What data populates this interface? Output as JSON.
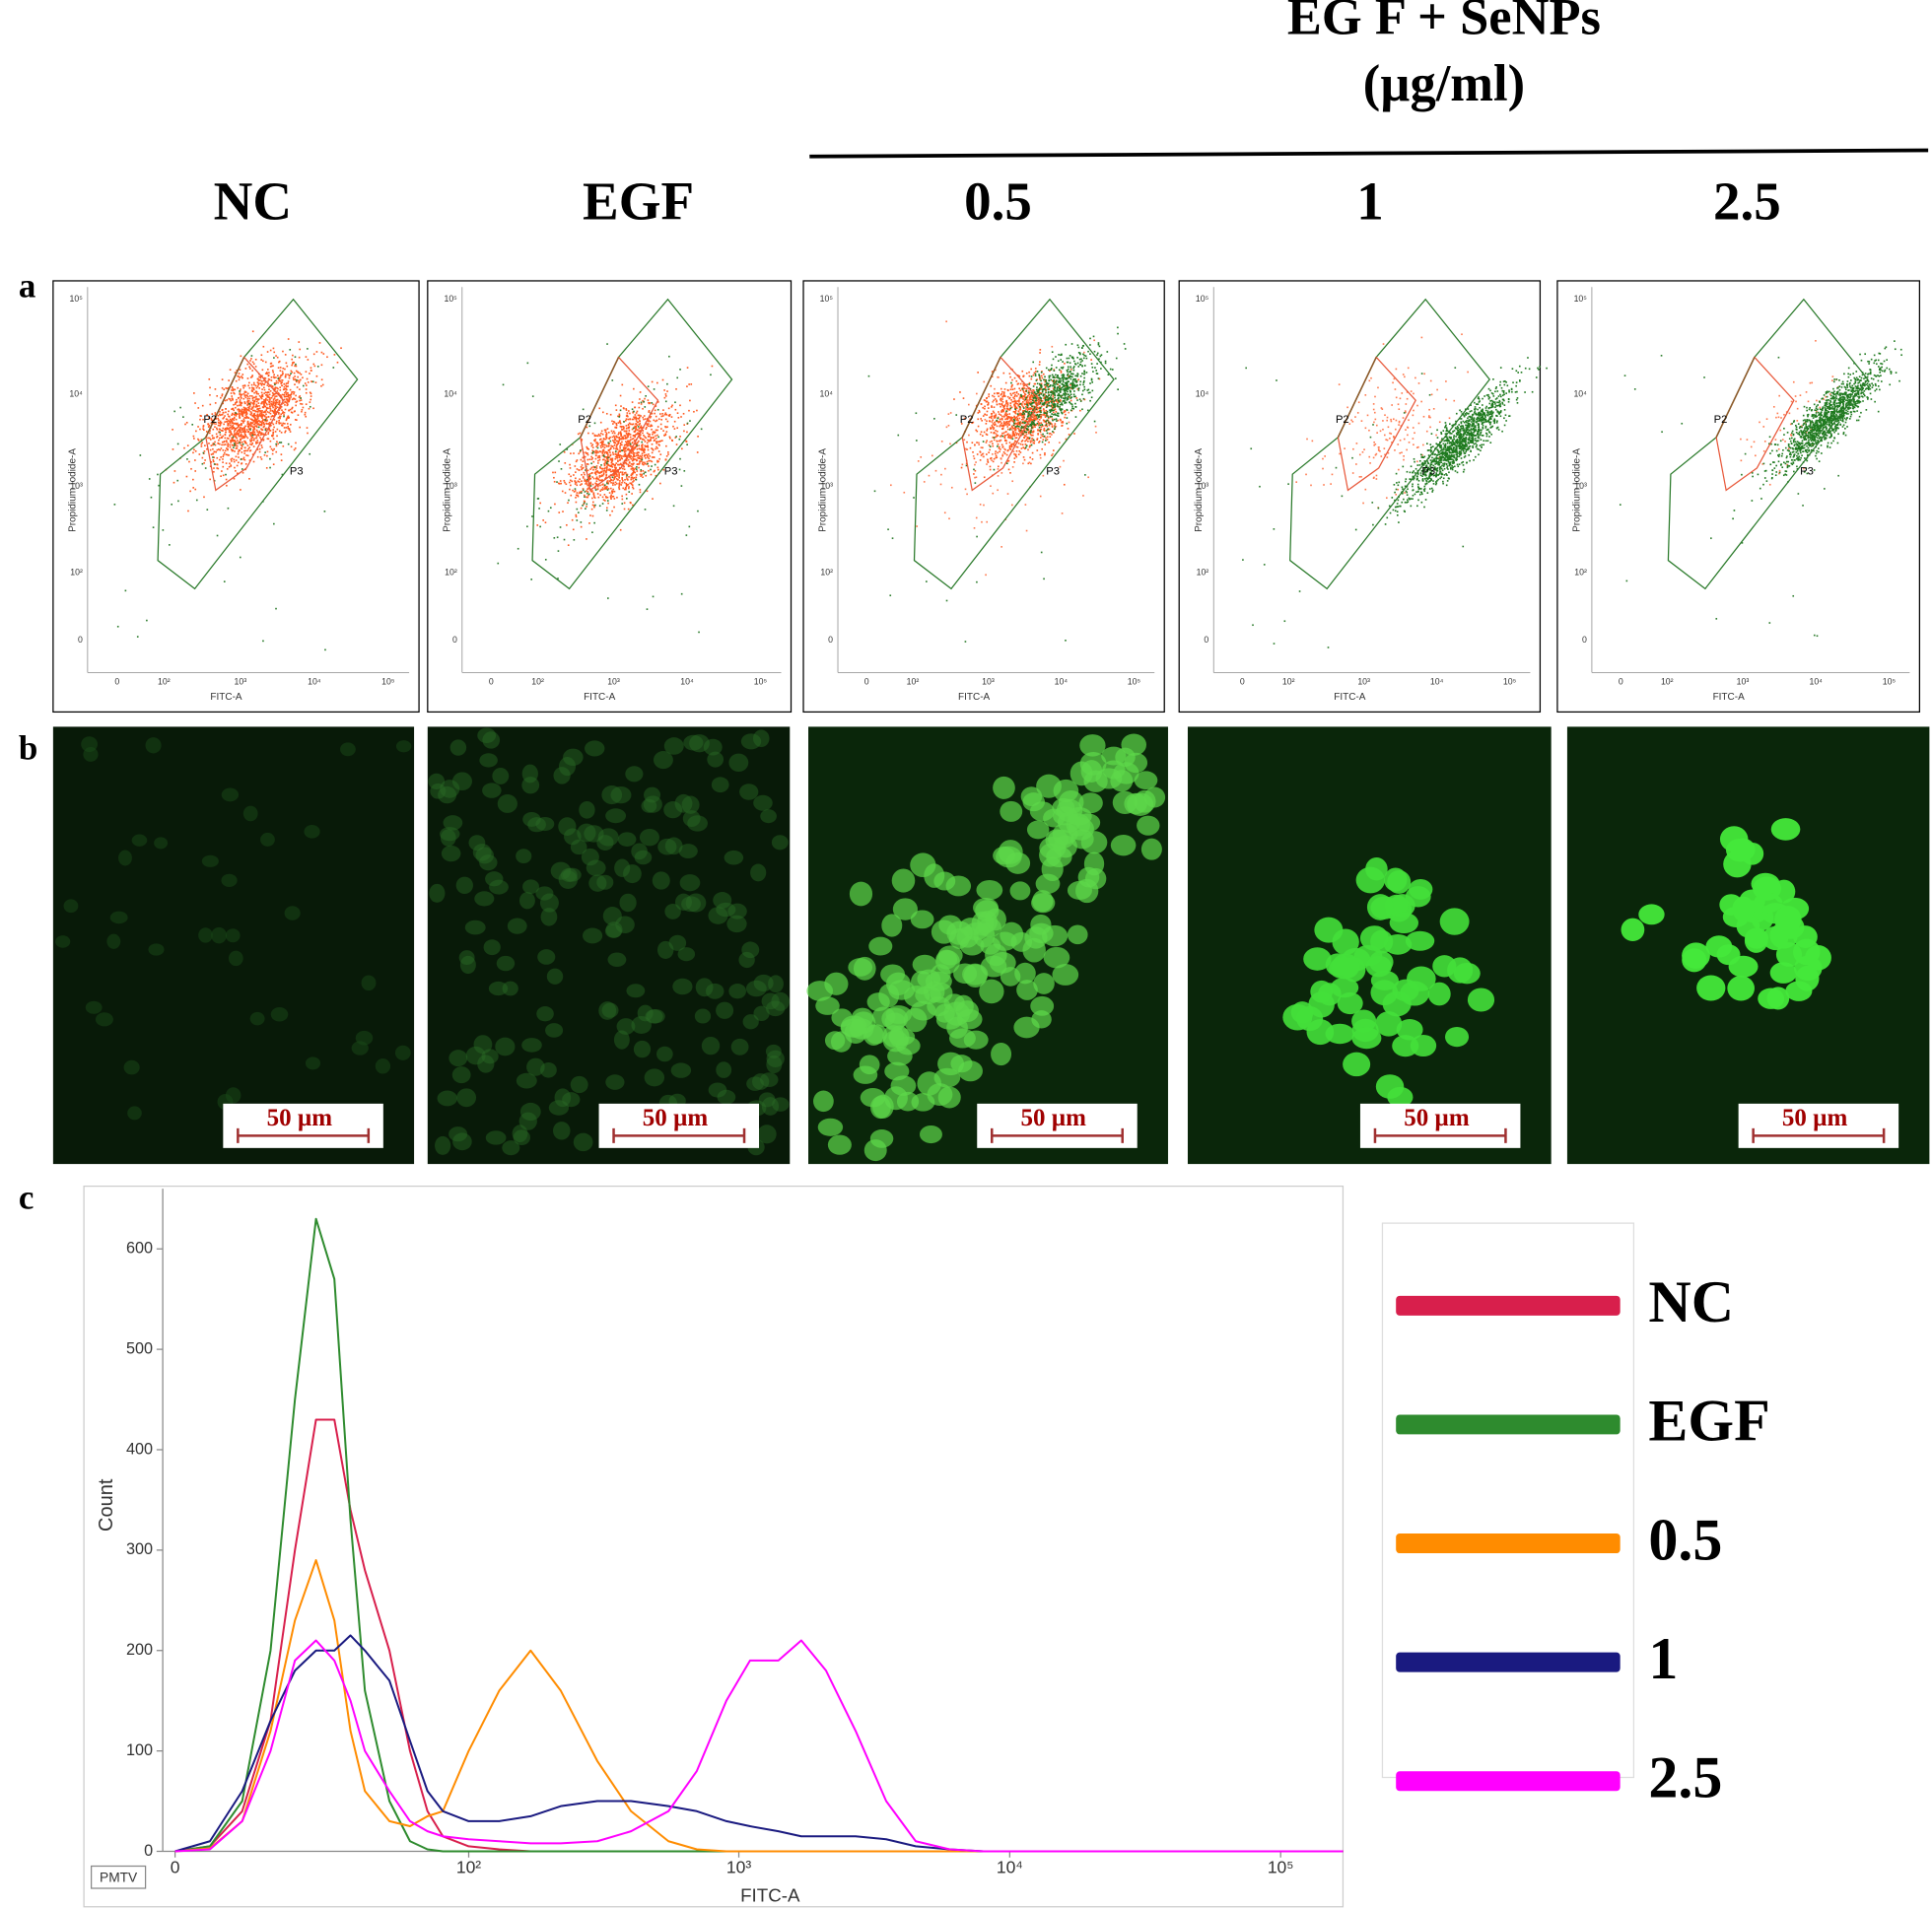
{
  "header": {
    "group_title": "EG F + SeNPs",
    "group_unit": "(µg/ml)",
    "columns": [
      "NC",
      "EGF",
      "0.5",
      "1",
      "2.5"
    ]
  },
  "panel_labels": [
    "a",
    "b",
    "c"
  ],
  "dot_plots": {
    "x_label": "FITC-A",
    "y_label": "Propidium Iodide-A",
    "gates": [
      "P2",
      "P3"
    ],
    "xticks": [
      "0",
      "10²",
      "10³",
      "10⁴",
      "10⁵"
    ],
    "yticks": [
      "0",
      "10²",
      "10³",
      "10⁴",
      "10⁵"
    ]
  },
  "scale_bar": "50 µm",
  "chart_data": {
    "type": "line",
    "x_label": "FITC-A",
    "y_label": "Count",
    "corner_label": "PMTV",
    "xscale": "asinh",
    "x": [
      0,
      5,
      10,
      15,
      20,
      25,
      30,
      35,
      40,
      50,
      60,
      70,
      80,
      100,
      130,
      170,
      220,
      300,
      400,
      550,
      700,
      900,
      1100,
      1400,
      1700,
      2100,
      2700,
      3500,
      4500,
      6000,
      8000,
      12000,
      50000,
      170000
    ],
    "xlim": [
      0,
      170000
    ],
    "xticks": [
      0,
      {
        "value": 100,
        "label": "10²"
      },
      {
        "value": 1000,
        "label": "10³"
      },
      {
        "value": 10000,
        "label": "10⁴"
      },
      {
        "value": 100000,
        "label": "10⁵"
      }
    ],
    "ylim": [
      0,
      660
    ],
    "yticks": [
      0,
      100,
      200,
      300,
      400,
      500,
      600
    ],
    "legend": "right",
    "series": [
      {
        "name": "NC",
        "color": "#d81f4c",
        "values": [
          0,
          5,
          40,
          130,
          300,
          430,
          430,
          340,
          280,
          200,
          100,
          40,
          15,
          5,
          2,
          0,
          0,
          0,
          0,
          0,
          0,
          0,
          0,
          0,
          0,
          0,
          0,
          0,
          0,
          0,
          0,
          0,
          0,
          0
        ]
      },
      {
        "name": "EGF",
        "color": "#2e8b2e",
        "values": [
          0,
          5,
          50,
          200,
          450,
          630,
          570,
          330,
          160,
          50,
          10,
          2,
          0,
          0,
          0,
          0,
          0,
          0,
          0,
          0,
          0,
          0,
          0,
          0,
          0,
          0,
          0,
          0,
          0,
          0,
          0,
          0,
          0,
          0
        ]
      },
      {
        "name": "0.5",
        "color": "#ff8c00",
        "values": [
          0,
          3,
          30,
          120,
          230,
          290,
          230,
          120,
          60,
          30,
          25,
          35,
          40,
          100,
          160,
          200,
          160,
          90,
          40,
          10,
          2,
          0,
          0,
          0,
          0,
          0,
          0,
          0,
          0,
          0,
          0,
          0,
          0,
          0
        ]
      },
      {
        "name": "1",
        "color": "#1a1a80",
        "values": [
          0,
          10,
          60,
          130,
          180,
          200,
          200,
          215,
          200,
          170,
          110,
          60,
          40,
          30,
          30,
          35,
          45,
          50,
          50,
          45,
          40,
          30,
          25,
          20,
          15,
          15,
          15,
          12,
          5,
          2,
          0,
          0,
          0,
          0
        ]
      },
      {
        "name": "2.5",
        "color": "#ff00ff",
        "values": [
          0,
          2,
          30,
          100,
          190,
          210,
          190,
          150,
          100,
          60,
          30,
          20,
          15,
          12,
          10,
          8,
          8,
          10,
          20,
          40,
          80,
          150,
          190,
          190,
          210,
          180,
          120,
          50,
          10,
          2,
          0,
          0,
          0,
          0
        ]
      }
    ]
  }
}
